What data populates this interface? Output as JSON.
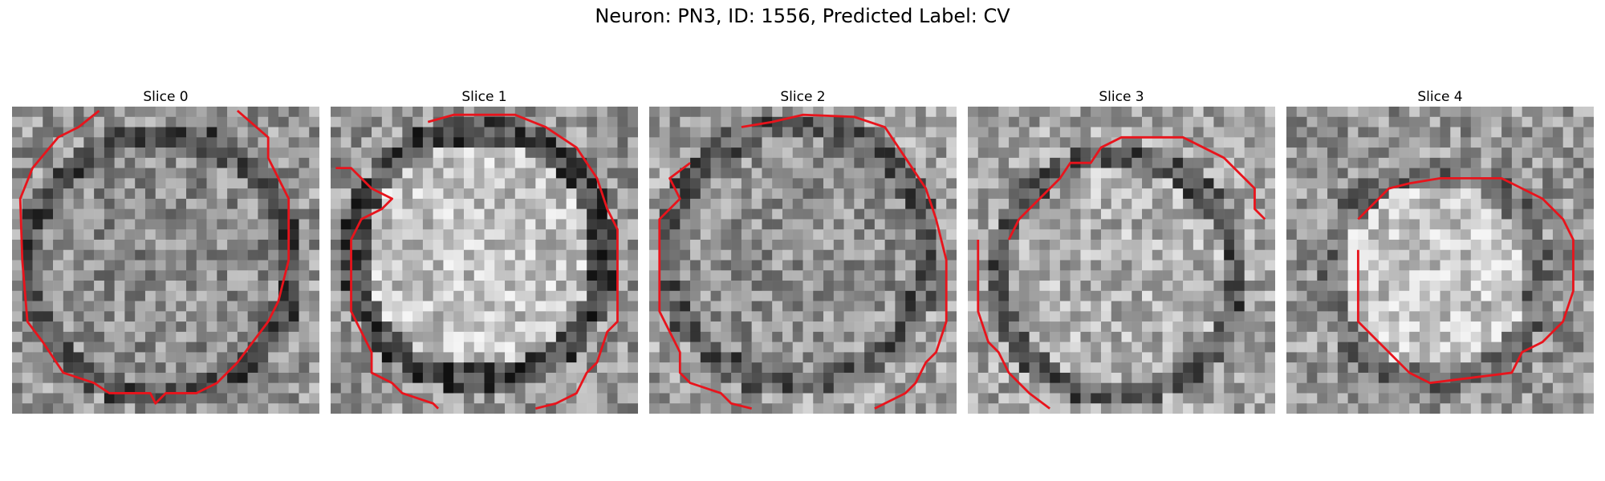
{
  "figure": {
    "title": "Neuron: PN3, ID: 1556, Predicted Label: CV"
  },
  "colors": {
    "background": "#ffffff",
    "contour": "#e8141c",
    "pixel_map": "grayscale"
  },
  "panels": [
    {
      "title": "Slice 0"
    },
    {
      "title": "Slice 1"
    },
    {
      "title": "Slice 2"
    },
    {
      "title": "Slice 3"
    },
    {
      "title": "Slice 4"
    }
  ]
}
